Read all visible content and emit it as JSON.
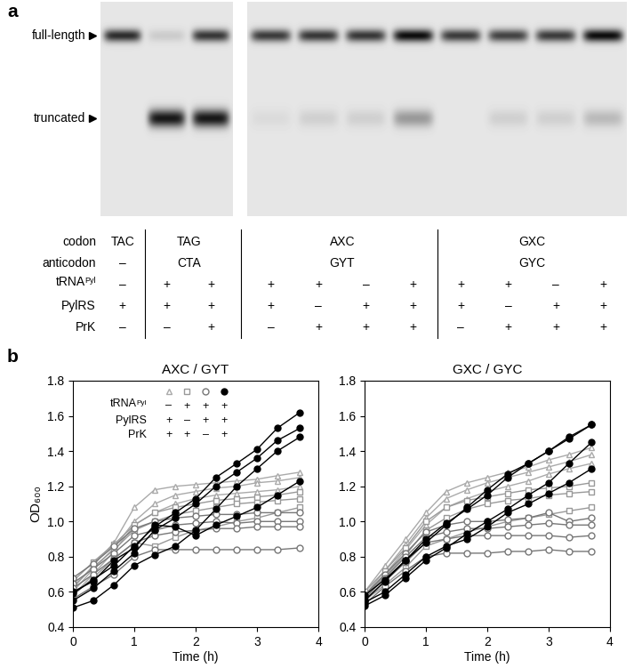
{
  "panel_a": {
    "label": "a",
    "blot_lanes": [
      3,
      8
    ],
    "bands": [
      {
        "label": "full-length",
        "intensity": [
          0.85,
          0.12,
          0.8,
          0.78,
          0.8,
          0.8,
          1.0,
          0.78,
          0.75,
          0.78,
          1.0
        ]
      },
      {
        "label": "truncated",
        "intensity": [
          0.0,
          0.95,
          0.95,
          0.05,
          0.1,
          0.1,
          0.35,
          0.0,
          0.1,
          0.1,
          0.2
        ]
      }
    ],
    "table": {
      "group_lanes": [
        1,
        2,
        4,
        4
      ],
      "rows": [
        {
          "label": {
            "text": "codon"
          },
          "groups": [
            "TAC",
            "TAG",
            "AXC",
            "GXC"
          ]
        },
        {
          "label": {
            "text": "anticodon"
          },
          "groups": [
            "–",
            "CTA",
            "GYT",
            "GYC"
          ]
        },
        {
          "label": {
            "text": "tRNA",
            "superscript": "Pyl"
          },
          "lanes": [
            "–",
            "+",
            "+",
            "+",
            "+",
            "–",
            "+",
            "+",
            "+",
            "–",
            "+"
          ]
        },
        {
          "label": {
            "text": "PylRS"
          },
          "lanes": [
            "+",
            "+",
            "+",
            "+",
            "–",
            "+",
            "+",
            "+",
            "–",
            "+",
            "+"
          ]
        },
        {
          "label": {
            "text": "PrK"
          },
          "lanes": [
            "–",
            "–",
            "+",
            "–",
            "+",
            "+",
            "+",
            "–",
            "+",
            "+",
            "+"
          ]
        }
      ]
    }
  },
  "panel_b": {
    "label": "b"
  },
  "chart_data": [
    {
      "type": "line",
      "title": "AXC / GYT",
      "xlabel": "Time (h)",
      "ylabel": "OD₆₀₀",
      "x": [
        0,
        0.33,
        0.67,
        1.0,
        1.33,
        1.67,
        2.0,
        2.33,
        2.67,
        3.0,
        3.33,
        3.7
      ],
      "xlim": [
        0,
        4
      ],
      "xticks": [
        0,
        1,
        2,
        3,
        4
      ],
      "ylim": [
        0.4,
        1.8
      ],
      "yticks": [
        0.4,
        0.6,
        0.8,
        1.0,
        1.2,
        1.4,
        1.6,
        1.8
      ],
      "legend": "upper left",
      "legend_rows": [
        {
          "text": "tRNA",
          "superscript": "Pyl"
        },
        {
          "text": "PylRS"
        },
        {
          "text": "PrK"
        }
      ],
      "series": [
        {
          "marker": "triangle_open",
          "color": "#aaaaaa",
          "conditions": [
            "–",
            "+",
            "+"
          ],
          "values": [
            0.62,
            0.75,
            0.88,
            1.08,
            1.18,
            1.2,
            1.21,
            1.22,
            1.23,
            1.24,
            1.26,
            1.28
          ]
        },
        {
          "marker": "triangle_open",
          "color": "#aaaaaa",
          "conditions": [
            "–",
            "+",
            "+"
          ],
          "values": [
            0.6,
            0.73,
            0.85,
            1.0,
            1.1,
            1.15,
            1.17,
            1.19,
            1.2,
            1.22,
            1.23,
            1.25
          ]
        },
        {
          "marker": "triangle_open",
          "color": "#aaaaaa",
          "conditions": [
            "–",
            "+",
            "+"
          ],
          "values": [
            0.58,
            0.7,
            0.83,
            0.98,
            1.05,
            1.1,
            1.13,
            1.15,
            1.16,
            1.17,
            1.18,
            1.2
          ]
        },
        {
          "marker": "square_open",
          "color": "#999999",
          "conditions": [
            "+",
            "–",
            "+"
          ],
          "values": [
            0.66,
            0.77,
            0.87,
            0.98,
            1.05,
            1.08,
            1.1,
            1.12,
            1.13,
            1.14,
            1.15,
            1.17
          ]
        },
        {
          "marker": "square_open",
          "color": "#999999",
          "conditions": [
            "+",
            "–",
            "+"
          ],
          "values": [
            0.63,
            0.74,
            0.84,
            0.95,
            1.0,
            1.04,
            1.06,
            1.08,
            1.1,
            1.11,
            1.12,
            1.13
          ]
        },
        {
          "marker": "square_open",
          "color": "#999999",
          "conditions": [
            "+",
            "–",
            "+"
          ],
          "values": [
            0.58,
            0.68,
            0.79,
            0.88,
            0.86,
            0.91,
            0.95,
            0.97,
            1.0,
            1.02,
            1.05,
            1.08
          ]
        },
        {
          "marker": "circle_open",
          "color": "#777777",
          "conditions": [
            "+",
            "+",
            "–"
          ],
          "values": [
            0.68,
            0.76,
            0.86,
            0.96,
            1.0,
            1.02,
            1.03,
            1.04,
            1.04,
            1.05,
            1.05,
            1.05
          ]
        },
        {
          "marker": "circle_open",
          "color": "#777777",
          "conditions": [
            "+",
            "+",
            "–"
          ],
          "values": [
            0.65,
            0.73,
            0.82,
            0.92,
            0.95,
            0.98,
            0.99,
            1.0,
            0.99,
            1.0,
            1.0,
            1.0
          ]
        },
        {
          "marker": "circle_open",
          "color": "#777777",
          "conditions": [
            "+",
            "+",
            "–"
          ],
          "values": [
            0.62,
            0.7,
            0.79,
            0.88,
            0.92,
            0.94,
            0.95,
            0.96,
            0.96,
            0.97,
            0.97,
            0.97
          ]
        },
        {
          "marker": "circle_open",
          "color": "#777777",
          "conditions": [
            "+",
            "+",
            "–"
          ],
          "values": [
            0.56,
            0.63,
            0.7,
            0.8,
            0.84,
            0.84,
            0.84,
            0.84,
            0.84,
            0.84,
            0.84,
            0.85
          ]
        },
        {
          "marker": "circle_filled",
          "color": "#000000",
          "conditions": [
            "+",
            "+",
            "+"
          ],
          "values": [
            0.59,
            0.67,
            0.75,
            0.86,
            0.97,
            1.05,
            1.13,
            1.25,
            1.33,
            1.41,
            1.53,
            1.62
          ]
        },
        {
          "marker": "circle_filled",
          "color": "#000000",
          "conditions": [
            "+",
            "+",
            "+"
          ],
          "values": [
            0.55,
            0.62,
            0.72,
            0.82,
            0.95,
            1.02,
            1.1,
            1.2,
            1.28,
            1.36,
            1.46,
            1.53
          ]
        },
        {
          "marker": "circle_filled",
          "color": "#000000",
          "conditions": [
            "+",
            "+",
            "+"
          ],
          "values": [
            0.51,
            0.55,
            0.64,
            0.75,
            0.81,
            0.86,
            0.95,
            1.07,
            1.2,
            1.3,
            1.4,
            1.48
          ]
        },
        {
          "marker": "circle_filled",
          "color": "#000000",
          "conditions": [
            "+",
            "+",
            "+"
          ],
          "values": [
            0.6,
            0.66,
            0.78,
            0.85,
            0.98,
            0.97,
            0.92,
            0.98,
            1.03,
            1.08,
            1.15,
            1.23
          ]
        }
      ]
    },
    {
      "type": "line",
      "title": "GXC / GYC",
      "xlabel": "Time (h)",
      "x": [
        0,
        0.33,
        0.67,
        1.0,
        1.33,
        1.67,
        2.0,
        2.33,
        2.67,
        3.0,
        3.33,
        3.7
      ],
      "xlim": [
        0,
        4
      ],
      "xticks": [
        0,
        1,
        2,
        3,
        4
      ],
      "ylim": [
        0.4,
        1.8
      ],
      "yticks": [
        0.4,
        0.6,
        0.8,
        1.0,
        1.2,
        1.4,
        1.6,
        1.8
      ],
      "series": [
        {
          "marker": "triangle_open",
          "color": "#aaaaaa",
          "conditions": [
            "–",
            "+",
            "+"
          ],
          "values": [
            0.6,
            0.75,
            0.9,
            1.05,
            1.17,
            1.22,
            1.25,
            1.28,
            1.31,
            1.35,
            1.38,
            1.42
          ]
        },
        {
          "marker": "triangle_open",
          "color": "#aaaaaa",
          "conditions": [
            "–",
            "+",
            "+"
          ],
          "values": [
            0.58,
            0.72,
            0.87,
            1.02,
            1.13,
            1.18,
            1.22,
            1.25,
            1.28,
            1.31,
            1.34,
            1.38
          ]
        },
        {
          "marker": "triangle_open",
          "color": "#aaaaaa",
          "conditions": [
            "–",
            "+",
            "+"
          ],
          "values": [
            0.57,
            0.7,
            0.84,
            0.98,
            1.08,
            1.13,
            1.17,
            1.2,
            1.23,
            1.27,
            1.3,
            1.33
          ]
        },
        {
          "marker": "square_open",
          "color": "#999999",
          "conditions": [
            "+",
            "–",
            "+"
          ],
          "values": [
            0.6,
            0.72,
            0.85,
            1.0,
            1.08,
            1.12,
            1.14,
            1.16,
            1.18,
            1.19,
            1.2,
            1.22
          ]
        },
        {
          "marker": "square_open",
          "color": "#999999",
          "conditions": [
            "+",
            "–",
            "+"
          ],
          "values": [
            0.57,
            0.69,
            0.81,
            0.95,
            1.02,
            1.07,
            1.1,
            1.12,
            1.13,
            1.15,
            1.16,
            1.17
          ]
        },
        {
          "marker": "square_open",
          "color": "#999999",
          "conditions": [
            "+",
            "–",
            "+"
          ],
          "values": [
            0.55,
            0.64,
            0.74,
            0.86,
            0.9,
            0.94,
            0.97,
            1.0,
            1.02,
            1.04,
            1.06,
            1.08
          ]
        },
        {
          "marker": "circle_open",
          "color": "#777777",
          "conditions": [
            "+",
            "+",
            "–"
          ],
          "values": [
            0.58,
            0.7,
            0.82,
            0.94,
            0.98,
            1.0,
            1.0,
            1.01,
            1.02,
            1.05,
            1.0,
            1.02
          ]
        },
        {
          "marker": "circle_open",
          "color": "#777777",
          "conditions": [
            "+",
            "+",
            "–"
          ],
          "values": [
            0.56,
            0.68,
            0.8,
            0.91,
            0.94,
            0.96,
            0.96,
            0.97,
            0.98,
            0.99,
            0.98,
            0.98
          ]
        },
        {
          "marker": "circle_open",
          "color": "#777777",
          "conditions": [
            "+",
            "+",
            "–"
          ],
          "values": [
            0.55,
            0.66,
            0.77,
            0.88,
            0.9,
            0.92,
            0.92,
            0.92,
            0.92,
            0.92,
            0.91,
            0.92
          ]
        },
        {
          "marker": "circle_open",
          "color": "#777777",
          "conditions": [
            "+",
            "+",
            "–"
          ],
          "values": [
            0.53,
            0.63,
            0.72,
            0.8,
            0.82,
            0.82,
            0.82,
            0.83,
            0.83,
            0.84,
            0.83,
            0.83
          ]
        },
        {
          "marker": "circle_filled",
          "color": "#000000",
          "conditions": [
            "+",
            "+",
            "+"
          ],
          "values": [
            0.55,
            0.66,
            0.78,
            0.9,
            0.99,
            1.07,
            1.15,
            1.25,
            1.33,
            1.4,
            1.47,
            1.55
          ]
        },
        {
          "marker": "circle_filled",
          "color": "#000000",
          "conditions": [
            "+",
            "+",
            "+"
          ],
          "values": [
            0.58,
            0.67,
            0.78,
            0.88,
            0.98,
            1.08,
            1.18,
            1.27,
            1.33,
            1.4,
            1.48,
            1.55
          ]
        },
        {
          "marker": "circle_filled",
          "color": "#000000",
          "conditions": [
            "+",
            "+",
            "+"
          ],
          "values": [
            0.52,
            0.58,
            0.68,
            0.78,
            0.85,
            0.93,
            1.0,
            1.07,
            1.15,
            1.22,
            1.33,
            1.45
          ]
        },
        {
          "marker": "circle_filled",
          "color": "#000000",
          "conditions": [
            "+",
            "+",
            "+"
          ],
          "values": [
            0.54,
            0.6,
            0.7,
            0.8,
            0.86,
            0.9,
            0.97,
            1.05,
            1.1,
            1.16,
            1.22,
            1.3
          ]
        }
      ]
    }
  ]
}
